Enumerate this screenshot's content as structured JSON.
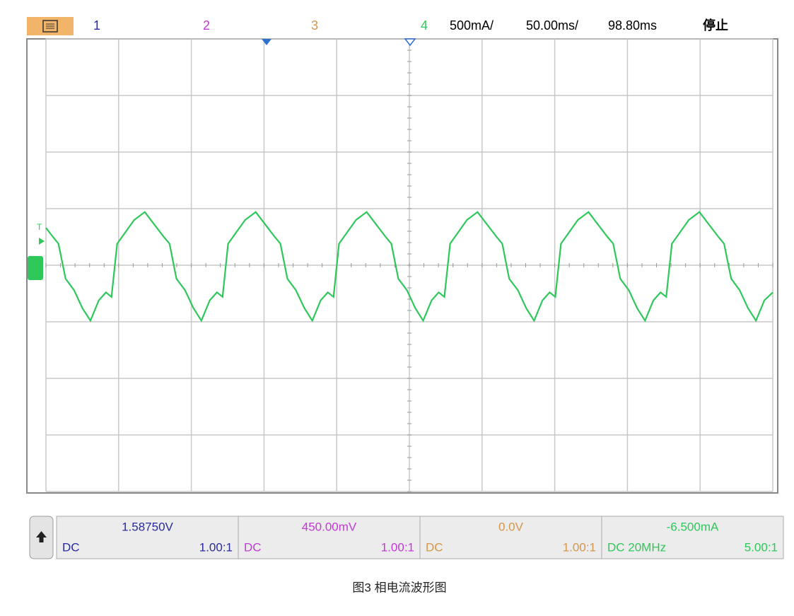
{
  "toolbar": {
    "channels": [
      {
        "label": "1",
        "color": "#2a2aa0"
      },
      {
        "label": "2",
        "color": "#c23ad6"
      },
      {
        "label": "3",
        "color": "#d4964a"
      },
      {
        "label": "4",
        "color": "#2ec85a"
      }
    ],
    "scale": "500mA/",
    "timebase": "50.00ms/",
    "delay": "98.80ms",
    "status": "停止"
  },
  "plot": {
    "xlim": [
      0,
      500
    ],
    "ylim": [
      -2000,
      2000
    ],
    "xgrid": [
      0,
      50,
      100,
      150,
      200,
      250,
      300,
      350,
      400,
      450,
      500
    ],
    "ygrid": [
      -2000,
      -1500,
      -1000,
      -500,
      0,
      500,
      1000,
      1500,
      2000
    ],
    "trace_color": "#2ec85a",
    "trace": {
      "x": [
        0,
        4.8,
        8.6,
        13.5,
        19.3,
        25.1,
        30.6,
        36.4,
        41.3,
        45.1,
        49.0,
        60.7,
        68.0,
        81.1,
        85.0,
        89.8,
        95.6,
        101.5,
        106.9,
        112.7,
        117.6,
        121.5,
        125.3,
        137.0,
        144.3,
        157.4,
        161.3,
        166.1,
        171.9,
        177.8,
        183.2,
        189.0,
        193.9,
        197.8,
        201.6,
        213.3,
        220.6,
        233.7,
        237.6,
        242.4,
        248.3,
        254.1,
        259.5,
        265.3,
        270.2,
        274.1,
        278.0,
        289.6,
        296.9,
        310.0,
        313.9,
        318.7,
        324.6,
        330.4,
        335.8,
        341.6,
        346.5,
        350.4,
        354.3,
        365.9,
        373.2,
        386.3,
        390.2,
        395.1,
        400.9,
        406.7,
        412.1,
        417.9,
        422.8,
        426.7,
        430.6,
        442.2,
        449.5,
        462.6,
        466.5,
        471.4,
        477.2,
        483.0,
        488.4,
        494.2,
        500
      ],
      "y": [
        330,
        250,
        190,
        -120,
        -220,
        -380,
        -490,
        -310,
        -240,
        -280,
        190,
        400,
        470,
        250,
        190,
        -120,
        -220,
        -380,
        -490,
        -310,
        -240,
        -280,
        190,
        400,
        470,
        250,
        190,
        -120,
        -220,
        -380,
        -490,
        -310,
        -240,
        -280,
        190,
        400,
        470,
        250,
        190,
        -120,
        -220,
        -380,
        -490,
        -310,
        -240,
        -280,
        190,
        400,
        470,
        250,
        190,
        -120,
        -220,
        -380,
        -490,
        -310,
        -240,
        -280,
        190,
        400,
        470,
        250,
        190,
        -120,
        -220,
        -380,
        -490,
        -310,
        -240,
        -280,
        190,
        400,
        470,
        250,
        190,
        -120,
        -220,
        -380,
        -490,
        -310,
        -240
      ]
    }
  },
  "panels": [
    {
      "value": "1.58750V",
      "coupling": "DC",
      "ratio": "1.00:1",
      "color": "#2a2aa0"
    },
    {
      "value": "450.00mV",
      "coupling": "DC",
      "ratio": "1.00:1",
      "color": "#c23ad6"
    },
    {
      "value": "0.0V",
      "coupling": "DC",
      "ratio": "1.00:1",
      "color": "#d4964a"
    },
    {
      "value": "-6.500mA",
      "coupling": "DC 20MHz",
      "ratio": "5.00:1",
      "color": "#2ec85a"
    }
  ],
  "caption": "图3 相电流波形图"
}
